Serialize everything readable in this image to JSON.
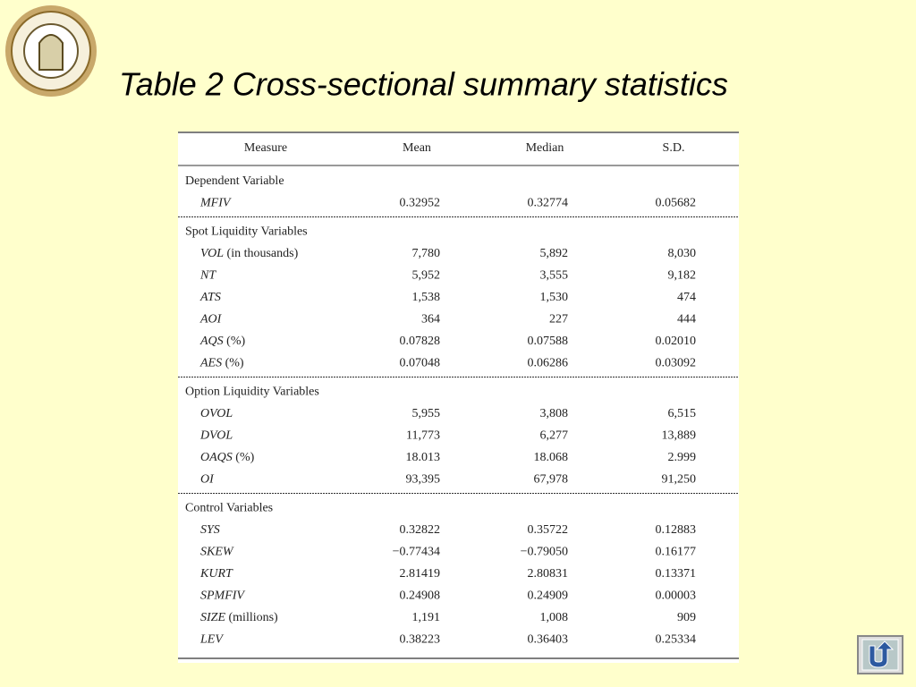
{
  "title": "Table 2  Cross-sectional summary statistics",
  "table": {
    "header": [
      "Measure",
      "Mean",
      "Median",
      "S.D."
    ],
    "sections": [
      {
        "title": "Dependent Variable",
        "rows": [
          {
            "name": "MFIV",
            "values": [
              "0.32952",
              "0.32774",
              "0.05682"
            ]
          }
        ]
      },
      {
        "title": "Spot Liquidity Variables",
        "rows": [
          {
            "name": "VOL",
            "note": "(in thousands)",
            "values": [
              "7,780",
              "5,892",
              "8,030"
            ]
          },
          {
            "name": "NT",
            "values": [
              "5,952",
              "3,555",
              "9,182"
            ]
          },
          {
            "name": "ATS",
            "values": [
              "1,538",
              "1,530",
              "474"
            ]
          },
          {
            "name": "AOI",
            "values": [
              "364",
              "227",
              "444"
            ]
          },
          {
            "name": "AQS",
            "note": "(%)",
            "values": [
              "0.07828",
              "0.07588",
              "0.02010"
            ]
          },
          {
            "name": "AES",
            "note": "(%)",
            "values": [
              "0.07048",
              "0.06286",
              "0.03092"
            ]
          }
        ]
      },
      {
        "title": "Option Liquidity Variables",
        "rows": [
          {
            "name": "OVOL",
            "values": [
              "5,955",
              "3,808",
              "6,515"
            ]
          },
          {
            "name": "DVOL",
            "values": [
              "11,773",
              "6,277",
              "13,889"
            ]
          },
          {
            "name": "OAQS",
            "note": "(%)",
            "values": [
              "18.013",
              "18.068",
              "2.999"
            ]
          },
          {
            "name": "OI",
            "values": [
              "93,395",
              "67,978",
              "91,250"
            ]
          }
        ]
      },
      {
        "title": "Control Variables",
        "rows": [
          {
            "name": "SYS",
            "values": [
              "0.32822",
              "0.35722",
              "0.12883"
            ]
          },
          {
            "name": "SKEW",
            "values": [
              "−0.77434",
              "−0.79050",
              "0.16177"
            ]
          },
          {
            "name": "KURT",
            "values": [
              "2.81419",
              "2.80831",
              "0.13371"
            ]
          },
          {
            "name": "SPMFIV",
            "values": [
              "0.24908",
              "0.24909",
              "0.00003"
            ]
          },
          {
            "name": "SIZE",
            "note": "(millions)",
            "values": [
              "1,191",
              "1,008",
              "909"
            ]
          },
          {
            "name": "LEV",
            "values": [
              "0.38223",
              "0.36403",
              "0.25334"
            ]
          }
        ]
      }
    ]
  }
}
